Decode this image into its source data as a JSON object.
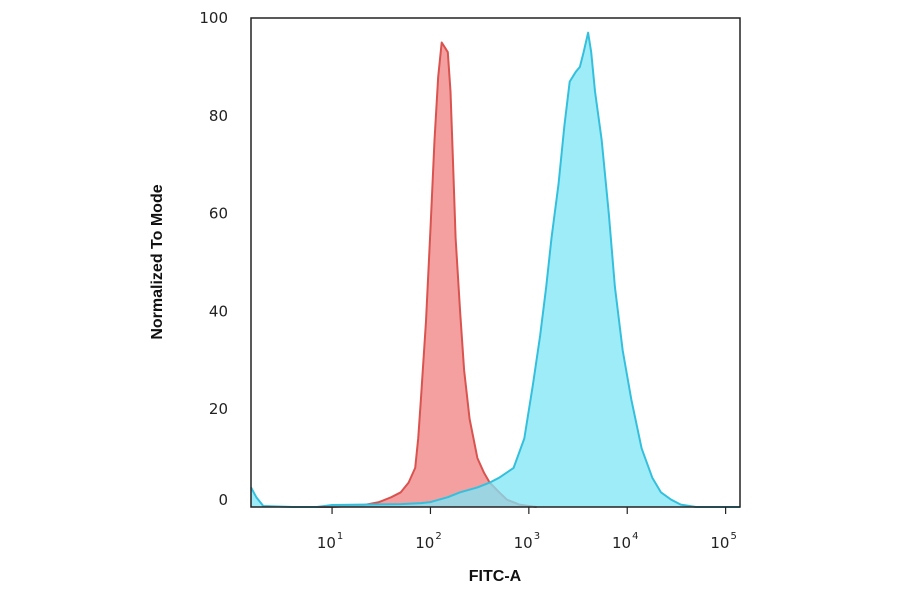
{
  "chart_data": {
    "type": "area",
    "title": "",
    "xlabel": "FITC-A",
    "ylabel": "Normalized To Mode",
    "x_scale": "log",
    "xlim": [
      1.5,
      140000
    ],
    "ylim": [
      0,
      100
    ],
    "y_ticks": [
      0,
      20,
      40,
      60,
      80,
      100
    ],
    "x_ticks": [
      {
        "value": 10,
        "base": "10",
        "exp": "1"
      },
      {
        "value": 100,
        "base": "10",
        "exp": "2"
      },
      {
        "value": 1000,
        "base": "10",
        "exp": "3"
      },
      {
        "value": 10000,
        "base": "10",
        "exp": "4"
      },
      {
        "value": 100000,
        "base": "10",
        "exp": "5"
      }
    ],
    "grid": false,
    "legend": "none",
    "series": [
      {
        "color": "#f08080",
        "stroke": "#d9534f",
        "points": [
          [
            6,
            0
          ],
          [
            10,
            0
          ],
          [
            20,
            0.3
          ],
          [
            30,
            1
          ],
          [
            40,
            2
          ],
          [
            50,
            3
          ],
          [
            60,
            5
          ],
          [
            70,
            8
          ],
          [
            75,
            14
          ],
          [
            80,
            22
          ],
          [
            90,
            38
          ],
          [
            100,
            57
          ],
          [
            110,
            75
          ],
          [
            120,
            88
          ],
          [
            130,
            95
          ],
          [
            140,
            94
          ],
          [
            150,
            93
          ],
          [
            160,
            85
          ],
          [
            170,
            70
          ],
          [
            180,
            55
          ],
          [
            200,
            40
          ],
          [
            220,
            28
          ],
          [
            250,
            18
          ],
          [
            300,
            10
          ],
          [
            350,
            7
          ],
          [
            400,
            5
          ],
          [
            500,
            3
          ],
          [
            600,
            1.5
          ],
          [
            800,
            0.5
          ],
          [
            1000,
            0.2
          ],
          [
            1200,
            0
          ]
        ]
      },
      {
        "color": "#7fe6f7",
        "stroke": "#34c0dc",
        "points": [
          [
            1.5,
            4
          ],
          [
            1.7,
            2
          ],
          [
            2,
            0.2
          ],
          [
            4,
            0
          ],
          [
            7,
            0
          ],
          [
            10,
            0.4
          ],
          [
            20,
            0.5
          ],
          [
            50,
            0.6
          ],
          [
            80,
            0.8
          ],
          [
            100,
            1
          ],
          [
            150,
            2
          ],
          [
            200,
            3
          ],
          [
            300,
            4
          ],
          [
            400,
            5
          ],
          [
            500,
            6
          ],
          [
            700,
            8
          ],
          [
            900,
            14
          ],
          [
            1100,
            25
          ],
          [
            1300,
            35
          ],
          [
            1500,
            45
          ],
          [
            1700,
            55
          ],
          [
            2000,
            66
          ],
          [
            2300,
            78
          ],
          [
            2600,
            87
          ],
          [
            3000,
            89
          ],
          [
            3300,
            90
          ],
          [
            3600,
            93
          ],
          [
            4000,
            97
          ],
          [
            4300,
            93
          ],
          [
            4700,
            85
          ],
          [
            5500,
            75
          ],
          [
            6500,
            60
          ],
          [
            7500,
            45
          ],
          [
            9000,
            32
          ],
          [
            11000,
            22
          ],
          [
            14000,
            12
          ],
          [
            18000,
            6
          ],
          [
            22000,
            3
          ],
          [
            28000,
            1.5
          ],
          [
            35000,
            0.5
          ],
          [
            50000,
            0
          ],
          [
            140000,
            0
          ]
        ]
      }
    ]
  }
}
